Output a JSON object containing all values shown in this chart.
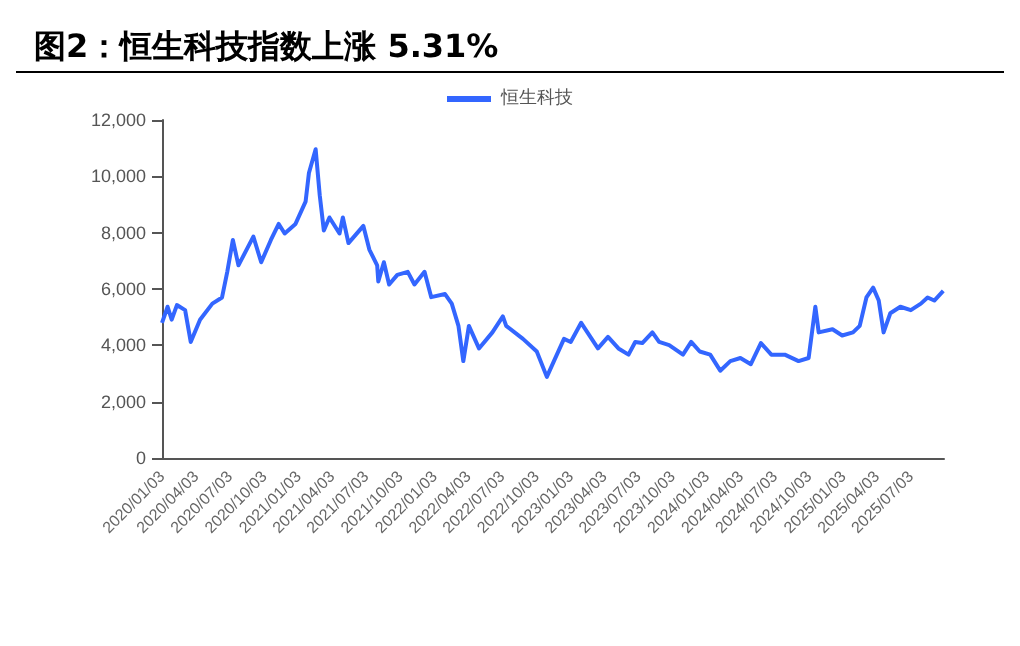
{
  "chart_data": {
    "type": "line",
    "title": "图2：恒生科技指数上涨 5.31%",
    "legend": "top",
    "grid": false,
    "marker": "none",
    "line_style": "solid",
    "x": [
      "2020-01-03",
      "2020-01-18",
      "2020-01-29",
      "2020-02-12",
      "2020-03-05",
      "2020-03-20",
      "2020-04-14",
      "2020-05-17",
      "2020-06-12",
      "2020-06-26",
      "2020-07-11",
      "2020-07-26",
      "2020-09-04",
      "2020-09-25",
      "2020-10-21",
      "2020-11-11",
      "2020-11-27",
      "2020-12-26",
      "2021-01-22",
      "2021-01-31",
      "2021-02-18",
      "2021-03-01",
      "2021-03-12",
      "2021-03-27",
      "2021-04-23",
      "2021-05-02",
      "2021-05-17",
      "2021-06-26",
      "2021-07-12",
      "2021-08-02",
      "2021-08-05",
      "2021-08-20",
      "2021-09-03",
      "2021-09-25",
      "2021-10-23",
      "2021-11-10",
      "2021-12-07",
      "2021-12-25",
      "2022-01-31",
      "2022-02-18",
      "2022-03-08",
      "2022-03-21",
      "2022-04-05",
      "2022-05-02",
      "2022-06-07",
      "2022-07-05",
      "2022-07-14",
      "2022-08-28",
      "2022-10-04",
      "2022-10-31",
      "2022-11-19",
      "2022-12-16",
      "2023-01-03",
      "2023-01-31",
      "2023-03-17",
      "2023-04-13",
      "2023-05-11",
      "2023-06-07",
      "2023-06-25",
      "2023-07-14",
      "2023-08-10",
      "2023-08-28",
      "2023-09-24",
      "2023-10-31",
      "2023-11-22",
      "2023-12-15",
      "2024-01-12",
      "2024-02-08",
      "2024-03-06",
      "2024-04-02",
      "2024-04-30",
      "2024-05-27",
      "2024-06-24",
      "2024-07-30",
      "2024-09-05",
      "2024-10-02",
      "2024-10-20",
      "2024-10-29",
      "2024-12-05",
      "2024-12-31",
      "2025-01-29",
      "2025-02-16",
      "2025-03-06",
      "2025-03-24",
      "2025-04-08",
      "2025-04-21",
      "2025-05-09",
      "2025-06-05",
      "2025-07-03",
      "2025-07-30",
      "2025-08-17",
      "2025-09-04",
      "2025-09-28"
    ],
    "series": [
      {
        "name": "恒生科技",
        "color": "#3366ff",
        "values": [
          4800,
          5370,
          4910,
          5430,
          5250,
          4120,
          4910,
          5480,
          5700,
          6610,
          7740,
          6840,
          7860,
          6950,
          7740,
          8310,
          7970,
          8310,
          9100,
          10120,
          10960,
          9330,
          8080,
          8540,
          7970,
          8540,
          7630,
          8240,
          7400,
          6840,
          6270,
          6950,
          6160,
          6500,
          6610,
          6160,
          6610,
          5710,
          5820,
          5480,
          4690,
          3440,
          4690,
          3890,
          4460,
          5030,
          4690,
          4230,
          3780,
          2880,
          3440,
          4230,
          4120,
          4800,
          3890,
          4300,
          3890,
          3670,
          4120,
          4080,
          4460,
          4120,
          4010,
          3670,
          4120,
          3780,
          3670,
          3100,
          3440,
          3550,
          3330,
          4080,
          3670,
          3670,
          3440,
          3550,
          5370,
          4460,
          4570,
          4350,
          4460,
          4690,
          5700,
          6050,
          5590,
          4460,
          5140,
          5370,
          5250,
          5480,
          5700,
          5590,
          5930
        ]
      }
    ],
    "xlim": [
      "2020-01-03",
      "2025-09-30"
    ],
    "xticks": [
      {
        "value": "2020-01-03",
        "label": "2020/01/03"
      },
      {
        "value": "2020-04-03",
        "label": "2020/04/03"
      },
      {
        "value": "2020-07-03",
        "label": "2020/07/03"
      },
      {
        "value": "2020-10-03",
        "label": "2020/10/03"
      },
      {
        "value": "2021-01-03",
        "label": "2021/01/03"
      },
      {
        "value": "2021-04-03",
        "label": "2021/04/03"
      },
      {
        "value": "2021-07-03",
        "label": "2021/07/03"
      },
      {
        "value": "2021-10-03",
        "label": "2021/10/03"
      },
      {
        "value": "2022-01-03",
        "label": "2022/01/03"
      },
      {
        "value": "2022-04-03",
        "label": "2022/04/03"
      },
      {
        "value": "2022-07-03",
        "label": "2022/07/03"
      },
      {
        "value": "2022-10-03",
        "label": "2022/10/03"
      },
      {
        "value": "2023-01-03",
        "label": "2023/01/03"
      },
      {
        "value": "2023-04-03",
        "label": "2023/04/03"
      },
      {
        "value": "2023-07-03",
        "label": "2023/07/03"
      },
      {
        "value": "2023-10-03",
        "label": "2023/10/03"
      },
      {
        "value": "2024-01-03",
        "label": "2024/01/03"
      },
      {
        "value": "2024-04-03",
        "label": "2024/04/03"
      },
      {
        "value": "2024-07-03",
        "label": "2024/07/03"
      },
      {
        "value": "2024-10-03",
        "label": "2024/10/03"
      },
      {
        "value": "2025-01-03",
        "label": "2025/01/03"
      },
      {
        "value": "2025-04-03",
        "label": "2025/04/03"
      },
      {
        "value": "2025-07-03",
        "label": "2025/07/03"
      }
    ],
    "ylim": [
      0,
      12000
    ],
    "yticks": [
      0,
      {
        "value": 2000,
        "label": "2,000"
      },
      {
        "value": 4000,
        "label": "4,000"
      },
      {
        "value": 6000,
        "label": "6,000"
      },
      {
        "value": 8000,
        "label": "8,000"
      },
      {
        "value": 10000,
        "label": "10,000"
      },
      {
        "value": 12000,
        "label": "12,000"
      }
    ]
  }
}
